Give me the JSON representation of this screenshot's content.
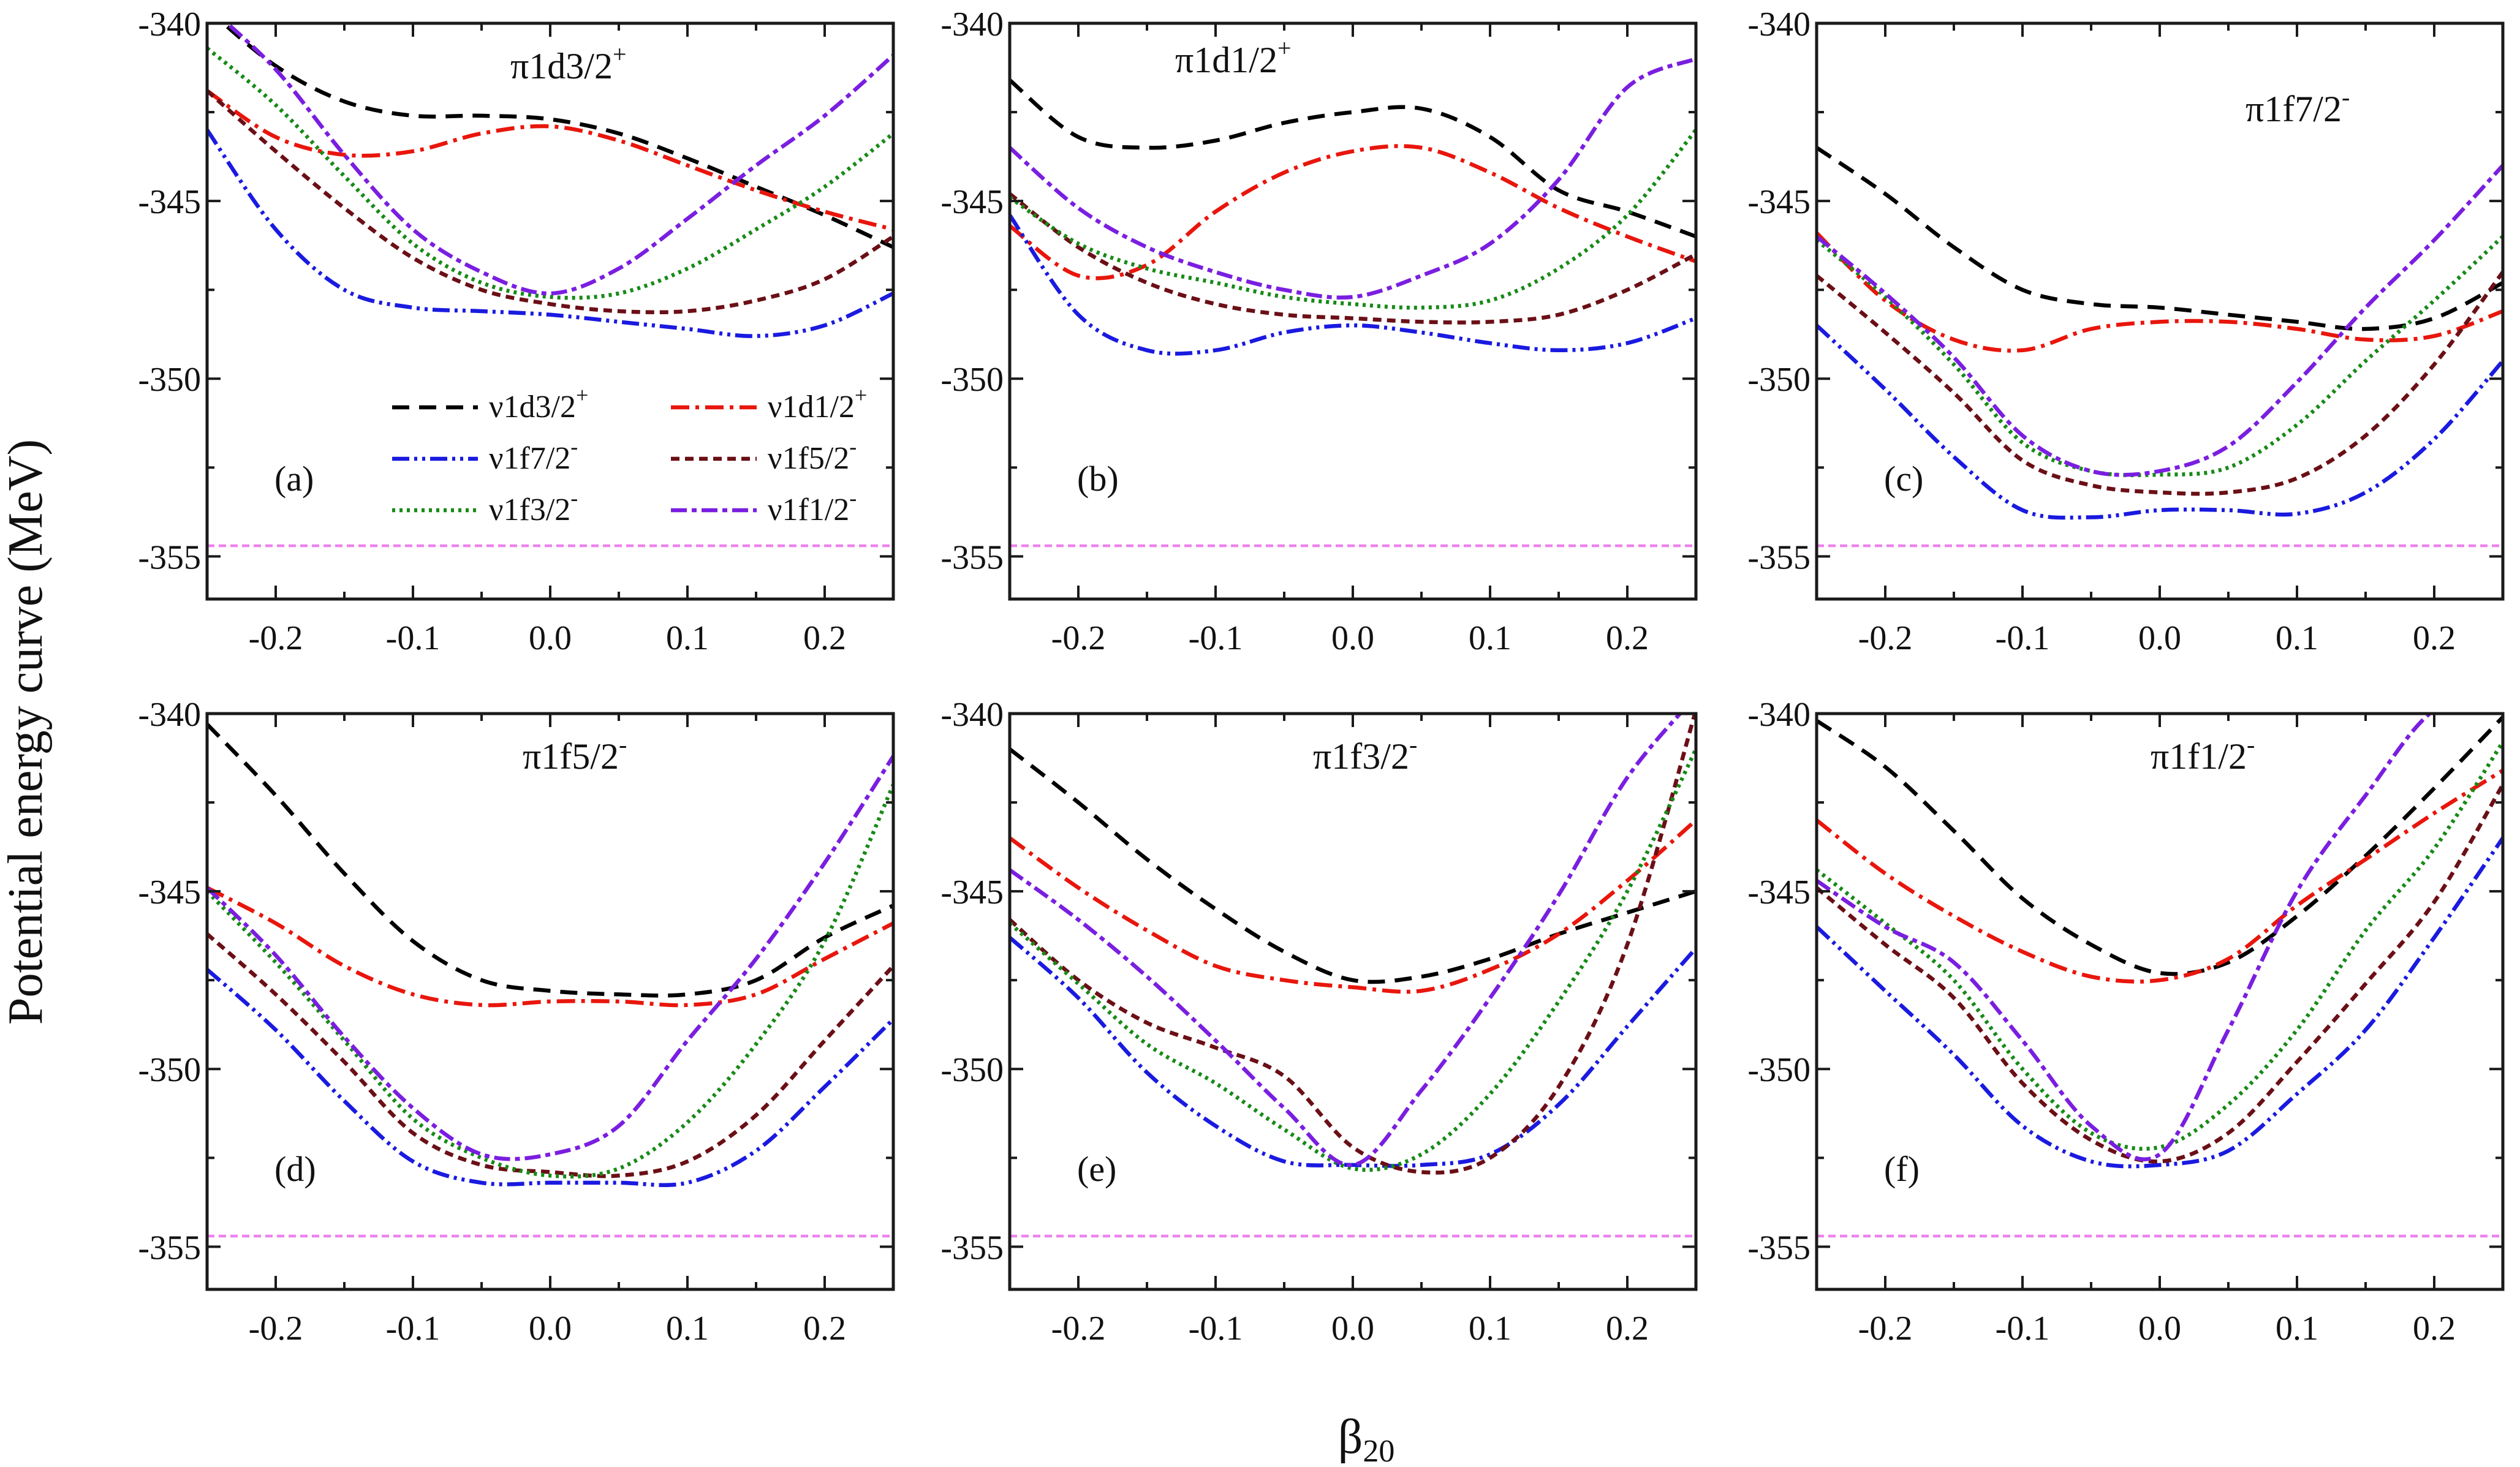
{
  "chart_data": {
    "type": "line",
    "ylabel": "Potential energy curve (MeV)",
    "xlabel": "β20",
    "xlim": [
      -0.25,
      0.25
    ],
    "ylim": [
      -356.2,
      -340
    ],
    "x_ticks": [
      -0.2,
      -0.1,
      0.0,
      0.1,
      0.2
    ],
    "x_tick_labels": [
      "-0.2",
      "-0.1",
      "0.0",
      "0.1",
      "0.2"
    ],
    "y_ticks": [
      -340,
      -345,
      -350,
      -355
    ],
    "y_tick_labels": [
      "-340",
      "-345",
      "-350",
      "-355"
    ],
    "reference_line": {
      "y": -354.7,
      "color": "#ee82ee"
    },
    "legend": {
      "placement": "inside panel (a), lower-middle",
      "entries": [
        {
          "label": "ν1d3/2",
          "sup": "+"
        },
        {
          "label": "ν1d1/2",
          "sup": "+"
        },
        {
          "label": "ν1f7/2",
          "sup": "-"
        },
        {
          "label": "ν1f5/2",
          "sup": "-"
        },
        {
          "label": "ν1f3/2",
          "sup": "-"
        },
        {
          "label": "ν1f1/2",
          "sup": "-"
        }
      ]
    },
    "series_styles": [
      {
        "color": "#000000",
        "dash": "28 16"
      },
      {
        "color": "#e8160c",
        "dash": "30 10 6 10"
      },
      {
        "color": "#1a1ae0",
        "dash": "28 8 5 8 5 8"
      },
      {
        "color": "#6b0f16",
        "dash": "14 9"
      },
      {
        "color": "#178a17",
        "dash": "5 7"
      },
      {
        "color": "#7a1ee0",
        "dash": "26 8 8 8"
      }
    ],
    "x": [
      -0.25,
      -0.2,
      -0.15,
      -0.1,
      -0.05,
      0.0,
      0.05,
      0.1,
      0.15,
      0.2,
      0.25
    ],
    "panels": [
      {
        "label": "(a)",
        "title": "π1d3/2",
        "title_sup": "+",
        "series": [
          {
            "values": [
              -339.6,
              -341.2,
              -342.2,
              -342.6,
              -342.6,
              -342.7,
              -343.1,
              -343.8,
              -344.6,
              -345.4,
              -346.3
            ]
          },
          {
            "values": [
              -341.9,
              -343.2,
              -343.7,
              -343.6,
              -343.1,
              -342.9,
              -343.3,
              -344.0,
              -344.7,
              -345.3,
              -345.8
            ]
          },
          {
            "values": [
              -343.0,
              -345.8,
              -347.5,
              -348.0,
              -348.1,
              -348.2,
              -348.4,
              -348.6,
              -348.8,
              -348.5,
              -347.6
            ]
          },
          {
            "values": [
              -341.9,
              -343.6,
              -345.2,
              -346.6,
              -347.5,
              -347.9,
              -348.1,
              -348.1,
              -347.8,
              -347.2,
              -346.0
            ]
          },
          {
            "values": [
              -340.7,
              -342.3,
              -344.3,
              -346.2,
              -347.3,
              -347.7,
              -347.6,
              -346.9,
              -345.8,
              -344.6,
              -343.1
            ]
          },
          {
            "values": [
              -339.5,
              -341.3,
              -343.7,
              -345.8,
              -347.0,
              -347.6,
              -346.9,
              -345.5,
              -344.0,
              -342.6,
              -340.9
            ]
          }
        ]
      },
      {
        "label": "(b)",
        "title": "π1d1/2",
        "title_sup": "+",
        "series": [
          {
            "values": [
              -341.6,
              -343.2,
              -343.5,
              -343.3,
              -342.8,
              -342.5,
              -342.4,
              -343.2,
              -344.7,
              -345.3,
              -346.0
            ]
          },
          {
            "values": [
              -345.7,
              -347.1,
              -346.8,
              -345.3,
              -344.2,
              -343.6,
              -343.5,
              -344.2,
              -345.2,
              -346.0,
              -346.7
            ]
          },
          {
            "values": [
              -345.4,
              -348.2,
              -349.2,
              -349.2,
              -348.7,
              -348.5,
              -348.7,
              -349.0,
              -349.2,
              -349.0,
              -348.3
            ]
          },
          {
            "values": [
              -344.8,
              -346.3,
              -347.3,
              -347.9,
              -348.2,
              -348.3,
              -348.4,
              -348.4,
              -348.2,
              -347.5,
              -346.5
            ]
          },
          {
            "values": [
              -344.9,
              -346.2,
              -346.9,
              -347.3,
              -347.7,
              -347.9,
              -348.0,
              -347.8,
              -346.9,
              -345.4,
              -343.0
            ]
          },
          {
            "values": [
              -343.5,
              -345.2,
              -346.3,
              -347.0,
              -347.5,
              -347.7,
              -347.1,
              -346.2,
              -344.4,
              -341.8,
              -341.0
            ]
          }
        ]
      },
      {
        "label": "(c)",
        "title": "π1f7/2",
        "title_sup": "-",
        "series": [
          {
            "values": [
              -343.5,
              -344.8,
              -346.3,
              -347.5,
              -347.9,
              -348.0,
              -348.2,
              -348.4,
              -348.6,
              -348.3,
              -347.3
            ]
          },
          {
            "values": [
              -345.9,
              -347.8,
              -348.9,
              -349.2,
              -348.6,
              -348.4,
              -348.4,
              -348.6,
              -348.9,
              -348.8,
              -348.1
            ]
          },
          {
            "values": [
              -348.5,
              -350.3,
              -352.2,
              -353.7,
              -353.9,
              -353.7,
              -353.7,
              -353.8,
              -353.2,
              -351.7,
              -349.5
            ]
          },
          {
            "values": [
              -347.1,
              -348.7,
              -350.4,
              -352.3,
              -353.0,
              -353.2,
              -353.2,
              -352.8,
              -351.6,
              -349.6,
              -347.0
            ]
          },
          {
            "values": [
              -346.1,
              -347.7,
              -349.6,
              -351.8,
              -352.6,
              -352.7,
              -352.5,
              -351.3,
              -349.5,
              -347.8,
              -346.0
            ]
          },
          {
            "values": [
              -346.0,
              -347.6,
              -349.4,
              -351.6,
              -352.6,
              -352.6,
              -351.9,
              -350.1,
              -348.0,
              -346.1,
              -344.0
            ]
          }
        ]
      },
      {
        "label": "(d)",
        "title": "π1f5/2",
        "title_sup": "-",
        "series": [
          {
            "values": [
              -340.3,
              -342.3,
              -344.5,
              -346.4,
              -347.5,
              -347.8,
              -347.9,
              -347.9,
              -347.5,
              -346.3,
              -345.4
            ]
          },
          {
            "values": [
              -344.9,
              -345.9,
              -347.1,
              -347.9,
              -348.2,
              -348.1,
              -348.1,
              -348.2,
              -347.9,
              -346.9,
              -345.9
            ]
          },
          {
            "values": [
              -347.2,
              -348.9,
              -350.9,
              -352.6,
              -353.2,
              -353.2,
              -353.2,
              -353.2,
              -352.3,
              -350.5,
              -348.6
            ]
          },
          {
            "values": [
              -346.2,
              -347.9,
              -349.8,
              -351.8,
              -352.7,
              -352.9,
              -353.0,
              -352.6,
              -351.3,
              -349.2,
              -347.1
            ]
          },
          {
            "values": [
              -345.0,
              -347.0,
              -349.2,
              -351.4,
              -352.5,
              -353.0,
              -352.8,
              -351.5,
              -349.3,
              -346.4,
              -342.0
            ]
          },
          {
            "values": [
              -344.9,
              -346.8,
              -349.1,
              -351.1,
              -352.4,
              -352.4,
              -351.6,
              -349.2,
              -346.9,
              -344.2,
              -341.2
            ]
          }
        ]
      },
      {
        "label": "(e)",
        "title": "π1f3/2",
        "title_sup": "-",
        "series": [
          {
            "values": [
              -341.0,
              -342.5,
              -344.1,
              -345.5,
              -346.7,
              -347.5,
              -347.4,
              -346.9,
              -346.2,
              -345.6,
              -345.0
            ]
          },
          {
            "values": [
              -343.5,
              -344.9,
              -346.1,
              -347.1,
              -347.5,
              -347.7,
              -347.8,
              -347.2,
              -346.2,
              -344.7,
              -343.0
            ]
          },
          {
            "values": [
              -346.3,
              -348.0,
              -350.1,
              -351.6,
              -352.6,
              -352.7,
              -352.7,
              -352.4,
              -351.0,
              -348.8,
              -346.6
            ]
          },
          {
            "values": [
              -345.8,
              -347.5,
              -348.7,
              -349.4,
              -350.2,
              -352.2,
              -352.9,
              -352.5,
              -350.5,
              -346.5,
              -339.9
            ]
          },
          {
            "values": [
              -345.9,
              -347.6,
              -349.3,
              -350.4,
              -351.7,
              -352.8,
              -352.4,
              -350.7,
              -348.1,
              -345.0,
              -341.0
            ]
          },
          {
            "values": [
              -344.4,
              -345.8,
              -347.4,
              -349.2,
              -351.1,
              -352.7,
              -350.6,
              -348.0,
              -345.1,
              -341.8,
              -339.5
            ]
          }
        ]
      },
      {
        "label": "(f)",
        "title": "π1f1/2",
        "title_sup": "-",
        "series": [
          {
            "values": [
              -340.2,
              -341.5,
              -343.3,
              -345.2,
              -346.5,
              -347.3,
              -347.0,
              -345.7,
              -344.0,
              -342.1,
              -340.1
            ]
          },
          {
            "values": [
              -343.0,
              -344.5,
              -345.7,
              -346.7,
              -347.4,
              -347.5,
              -346.9,
              -345.4,
              -344.1,
              -342.8,
              -341.6
            ]
          },
          {
            "values": [
              -346.0,
              -347.8,
              -349.6,
              -351.6,
              -352.6,
              -352.7,
              -352.3,
              -350.7,
              -348.9,
              -346.3,
              -343.5
            ]
          },
          {
            "values": [
              -344.9,
              -346.5,
              -348.0,
              -350.4,
              -352.0,
              -352.6,
              -351.8,
              -349.8,
              -347.6,
              -345.3,
              -342.0
            ]
          },
          {
            "values": [
              -344.4,
              -345.9,
              -347.5,
              -350.0,
              -351.8,
              -352.2,
              -351.0,
              -348.9,
              -346.1,
              -343.8,
              -340.8
            ]
          },
          {
            "values": [
              -344.7,
              -346.0,
              -347.0,
              -349.2,
              -351.6,
              -352.4,
              -348.9,
              -345.0,
              -342.3,
              -339.9,
              -339.5
            ]
          }
        ]
      }
    ]
  }
}
